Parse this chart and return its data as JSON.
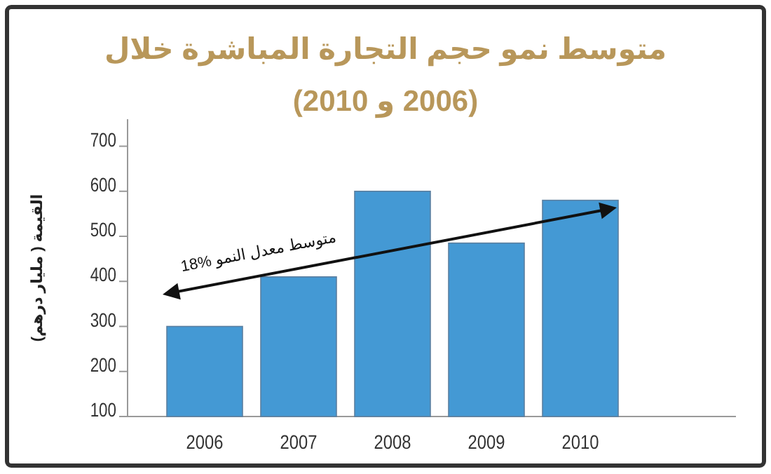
{
  "chart_data": {
    "type": "bar",
    "title": "متوسط نمو حجم التجارة المباشرة خلال",
    "subtitle": "(2006 و 2010)",
    "ylabel": "القيمة ( مليار درهم)",
    "categories": [
      "2006",
      "2007",
      "2008",
      "2009",
      "2010"
    ],
    "values": [
      300,
      410,
      600,
      485,
      580
    ],
    "color": "#4499d4",
    "ylim": [
      100,
      760
    ],
    "yticks": [
      100,
      200,
      300,
      400,
      500,
      600,
      700
    ],
    "grid": false,
    "annotations": [
      "متوسط معدل النمو %18"
    ]
  }
}
